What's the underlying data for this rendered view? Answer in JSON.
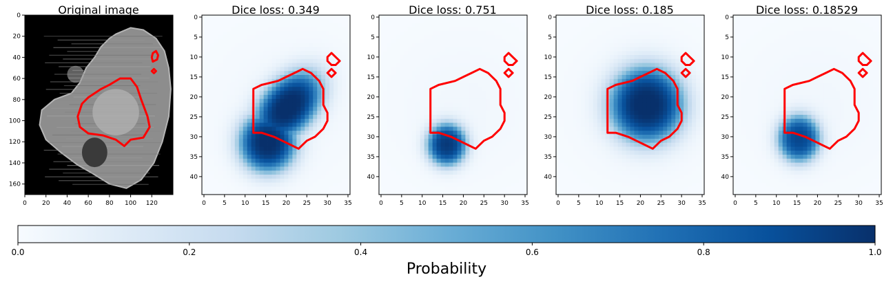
{
  "figure": {
    "colorbar_label": "Probability",
    "colormap": "Blues",
    "contour_color": "#ff0000"
  },
  "chart_data": [
    {
      "type": "heatmap",
      "title": "Original image",
      "colormap": "gray",
      "xlim": [
        0,
        140
      ],
      "ylim": [
        170,
        0
      ],
      "xticks": [
        0,
        20,
        40,
        60,
        80,
        100,
        120
      ],
      "yticks": [
        0,
        20,
        40,
        60,
        80,
        100,
        120,
        140,
        160
      ],
      "contours": [
        [
          [
            60,
            78
          ],
          [
            72,
            70
          ],
          [
            80,
            66
          ],
          [
            90,
            60
          ],
          [
            100,
            60
          ],
          [
            106,
            68
          ],
          [
            110,
            80
          ],
          [
            116,
            96
          ],
          [
            118,
            106
          ],
          [
            112,
            116
          ],
          [
            100,
            118
          ],
          [
            94,
            124
          ],
          [
            86,
            118
          ],
          [
            74,
            114
          ],
          [
            60,
            112
          ],
          [
            52,
            106
          ],
          [
            50,
            96
          ],
          [
            54,
            84
          ],
          [
            60,
            78
          ]
        ],
        [
          [
            121,
            36
          ],
          [
            124,
            34
          ],
          [
            126,
            38
          ],
          [
            125,
            42
          ],
          [
            121,
            44
          ],
          [
            120,
            40
          ],
          [
            121,
            36
          ]
        ],
        [
          [
            120,
            53
          ],
          [
            122,
            51
          ],
          [
            124,
            53
          ],
          [
            122,
            55
          ],
          [
            120,
            53
          ]
        ]
      ]
    },
    {
      "type": "heatmap",
      "title": "Dice loss: 0.349",
      "colormap": "Blues",
      "xlim": [
        -0.5,
        35.5
      ],
      "ylim": [
        44.5,
        -0.5
      ],
      "xticks": [
        0,
        5,
        10,
        15,
        20,
        25,
        30,
        35
      ],
      "yticks": [
        0,
        5,
        10,
        15,
        20,
        25,
        30,
        35,
        40
      ],
      "blobs": [
        {
          "cx": 15.5,
          "cy": 31.5,
          "rx": 6.5,
          "ry": 7.0,
          "angle": 0,
          "peak": 1.0
        },
        {
          "cx": 20.5,
          "cy": 22.5,
          "rx": 6.0,
          "ry": 9.5,
          "angle": 40,
          "peak": 1.0
        }
      ],
      "contours": "tumor_outline"
    },
    {
      "type": "heatmap",
      "title": "Dice loss: 0.751",
      "colormap": "Blues",
      "xlim": [
        -0.5,
        35.5
      ],
      "ylim": [
        44.5,
        -0.5
      ],
      "xticks": [
        0,
        5,
        10,
        15,
        20,
        25,
        30,
        35
      ],
      "yticks": [
        0,
        5,
        10,
        15,
        20,
        25,
        30,
        35,
        40
      ],
      "blobs": [
        {
          "cx": 16.0,
          "cy": 32.0,
          "rx": 4.5,
          "ry": 5.0,
          "angle": 0,
          "peak": 0.95
        }
      ],
      "contours": "tumor_outline"
    },
    {
      "type": "heatmap",
      "title": "Dice loss: 0.185",
      "colormap": "Blues",
      "xlim": [
        -0.5,
        35.5
      ],
      "ylim": [
        44.5,
        -0.5
      ],
      "xticks": [
        0,
        5,
        10,
        15,
        20,
        25,
        30,
        35
      ],
      "yticks": [
        0,
        5,
        10,
        15,
        20,
        25,
        30,
        35,
        40
      ],
      "blobs": [
        {
          "cx": 21.5,
          "cy": 22.0,
          "rx": 8.5,
          "ry": 9.0,
          "angle": 0,
          "peak": 1.0
        }
      ],
      "contours": "tumor_outline"
    },
    {
      "type": "heatmap",
      "title": "Dice loss: 0.18529",
      "colormap": "Blues",
      "xlim": [
        -0.5,
        35.5
      ],
      "ylim": [
        44.5,
        -0.5
      ],
      "xticks": [
        0,
        5,
        10,
        15,
        20,
        25,
        30,
        35
      ],
      "yticks": [
        0,
        5,
        10,
        15,
        20,
        25,
        30,
        35,
        40
      ],
      "blobs": [
        {
          "cx": 15.5,
          "cy": 30.5,
          "rx": 4.8,
          "ry": 5.5,
          "angle": 0,
          "peak": 0.9
        }
      ],
      "contours": "tumor_outline"
    },
    {
      "type": "colorbar",
      "label": "Probability",
      "colormap": "Blues",
      "range": [
        0.0,
        1.0
      ],
      "ticks": [
        "0.0",
        "0.2",
        "0.4",
        "0.6",
        "0.8",
        "1.0"
      ]
    }
  ],
  "tumor_outline": [
    [
      [
        12,
        18
      ],
      [
        14,
        17
      ],
      [
        18,
        16
      ],
      [
        20,
        15
      ],
      [
        22,
        14
      ],
      [
        24,
        13
      ],
      [
        26,
        14
      ],
      [
        28,
        16
      ],
      [
        29,
        18
      ],
      [
        29,
        22
      ],
      [
        30,
        24
      ],
      [
        30,
        26
      ],
      [
        29,
        28
      ],
      [
        27,
        30
      ],
      [
        25,
        31
      ],
      [
        23,
        33
      ],
      [
        21,
        32
      ],
      [
        19,
        31
      ],
      [
        17,
        30
      ],
      [
        14,
        29
      ],
      [
        12,
        29
      ],
      [
        12,
        26
      ],
      [
        12,
        20
      ],
      [
        12,
        18
      ]
    ],
    [
      [
        30,
        10
      ],
      [
        31,
        9
      ],
      [
        32,
        10
      ],
      [
        33,
        11
      ],
      [
        32,
        12
      ],
      [
        31,
        12
      ],
      [
        30,
        11
      ],
      [
        30,
        10
      ]
    ],
    [
      [
        30,
        14
      ],
      [
        31,
        13
      ],
      [
        32,
        14
      ],
      [
        31,
        15
      ],
      [
        30,
        14
      ]
    ]
  ]
}
